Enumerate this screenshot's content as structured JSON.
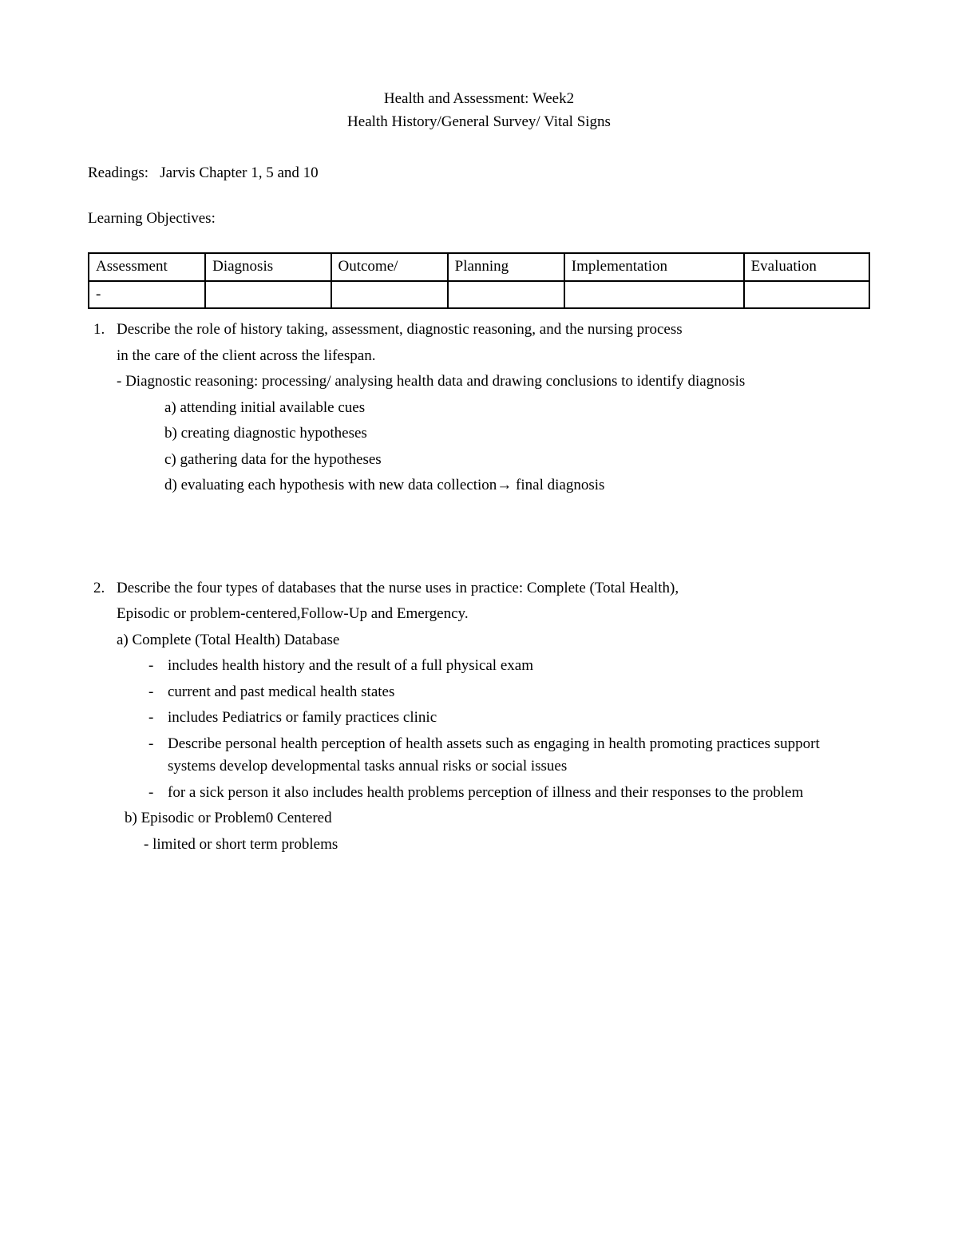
{
  "title": {
    "line1": "Health and Assessment: Week2",
    "line2": "Health History/General Survey/ Vital Signs"
  },
  "readings_label": "Readings:",
  "readings_text": "Jarvis Chapter 1, 5 and 10",
  "learning_objectives_label": "Learning Objectives:",
  "table": {
    "columns": [
      "Assessment",
      "Diagnosis",
      "Outcome/",
      "Planning",
      "Implementation",
      "Evaluation"
    ],
    "row_dash": "-"
  },
  "objectives": [
    {
      "text1": "Describe the role of history taking, assessment, diagnostic reasoning, and the nursing process",
      "text2": "in the care of the client across the lifespan.",
      "note": "- Diagnostic reasoning: processing/ analysing health data and drawing conclusions to identify diagnosis",
      "alpha": [
        "a) attending initial available cues",
        "b) creating diagnostic hypotheses",
        "c) gathering data for the hypotheses"
      ],
      "alpha_d_prefix": "d) evaluating each hypothesis with new data collection",
      "alpha_d_arrow": "→",
      "alpha_d_suffix": " final diagnosis"
    },
    {
      "text1": "Describe the four types of databases that the nurse uses in practice: Complete (Total Health),",
      "text2": "Episodic or problem-centered,Follow-Up and Emergency.",
      "a_label": "a) Complete (Total Health) Database",
      "a_items": [
        "includes health history and the result of a full physical exam",
        "current and past medical health states",
        "includes Pediatrics or family practices clinic",
        "Describe personal health perception of health assets such as engaging in health promoting practices support systems develop developmental tasks annual risks or social issues",
        "for a sick person it also includes health problems perception of illness and their responses to the problem"
      ],
      "b_label": "b)  Episodic or Problem0 Centered",
      "b_note": "- limited or short term problems"
    }
  ],
  "styling": {
    "background_color": "#ffffff",
    "text_color": "#000000",
    "border_color": "#000000",
    "font_family": "Times New Roman",
    "base_fontsize": 19
  }
}
